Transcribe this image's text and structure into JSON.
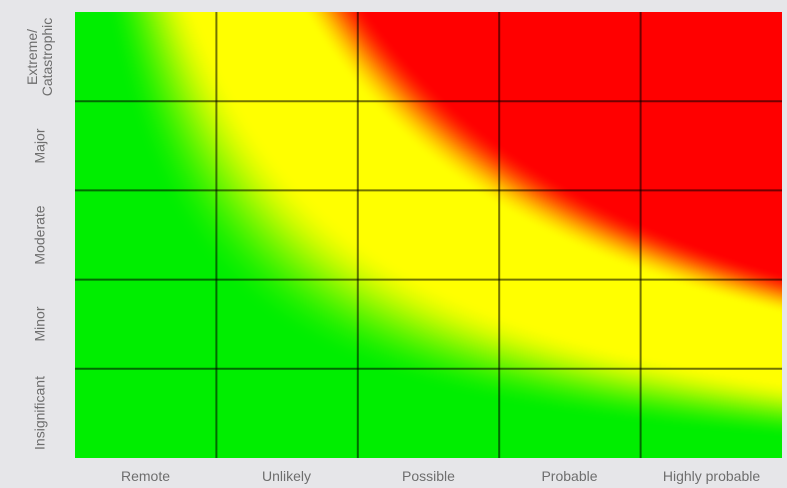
{
  "chart_data": {
    "type": "heatmap",
    "x_categories": [
      "Remote",
      "Unlikely",
      "Possible",
      "Probable",
      "Highly probable"
    ],
    "y_categories": [
      "Insignificant",
      "Minor",
      "Moderate",
      "Major",
      "Extreme/\nCatastrophic"
    ],
    "colors": {
      "low": "#00ee00",
      "medium": "#ffff00",
      "high": "#ff0000"
    },
    "risk_levels": [
      [
        "medium",
        "high",
        "high",
        "high",
        "high"
      ],
      [
        "medium",
        "medium",
        "high",
        "high",
        "high"
      ],
      [
        "low",
        "medium",
        "medium",
        "high",
        "high"
      ],
      [
        "low",
        "low",
        "medium",
        "medium",
        "medium"
      ],
      [
        "low",
        "low",
        "low",
        "medium",
        "medium"
      ]
    ],
    "grid": true,
    "legend": "none"
  }
}
